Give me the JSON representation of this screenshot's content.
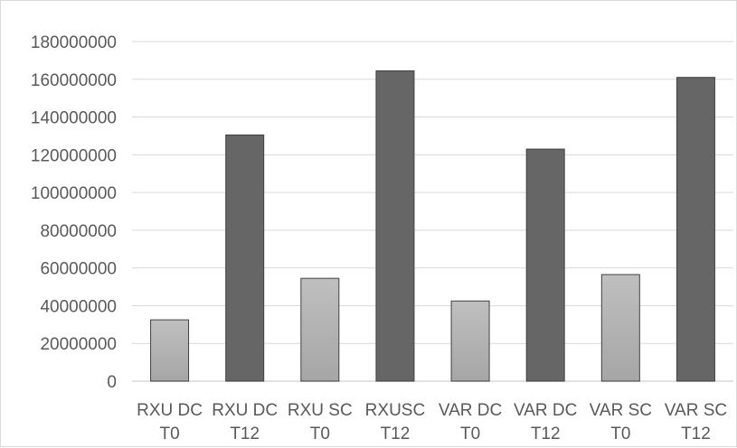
{
  "chart_data": {
    "type": "bar",
    "categories": [
      [
        "RXU DC",
        "T0"
      ],
      [
        "RXU DC",
        "T12"
      ],
      [
        "RXU SC",
        "T0"
      ],
      [
        "RXUSC",
        "T12"
      ],
      [
        "VAR DC",
        "T0"
      ],
      [
        "VAR DC",
        "T12"
      ],
      [
        "VAR SC",
        "T0"
      ],
      [
        "VAR SC",
        "T12"
      ]
    ],
    "values": [
      32500000,
      130500000,
      54500000,
      164500000,
      42500000,
      123000000,
      56500000,
      161000000
    ],
    "bar_colors": [
      "#a6a6a6",
      "#666666",
      "#a6a6a6",
      "#666666",
      "#a6a6a6",
      "#666666",
      "#a6a6a6",
      "#666666"
    ],
    "bar_gradient_light": "#bfbfbf",
    "bar_outline": "#404040",
    "yticks": [
      "0",
      "20000000",
      "40000000",
      "60000000",
      "80000000",
      "100000000",
      "120000000",
      "140000000",
      "160000000",
      "180000000"
    ],
    "ylim": [
      0,
      180000000
    ],
    "grid": true,
    "grid_color": "#d9d9d9",
    "title": "",
    "xlabel": "",
    "ylabel": "",
    "legend": "none"
  }
}
